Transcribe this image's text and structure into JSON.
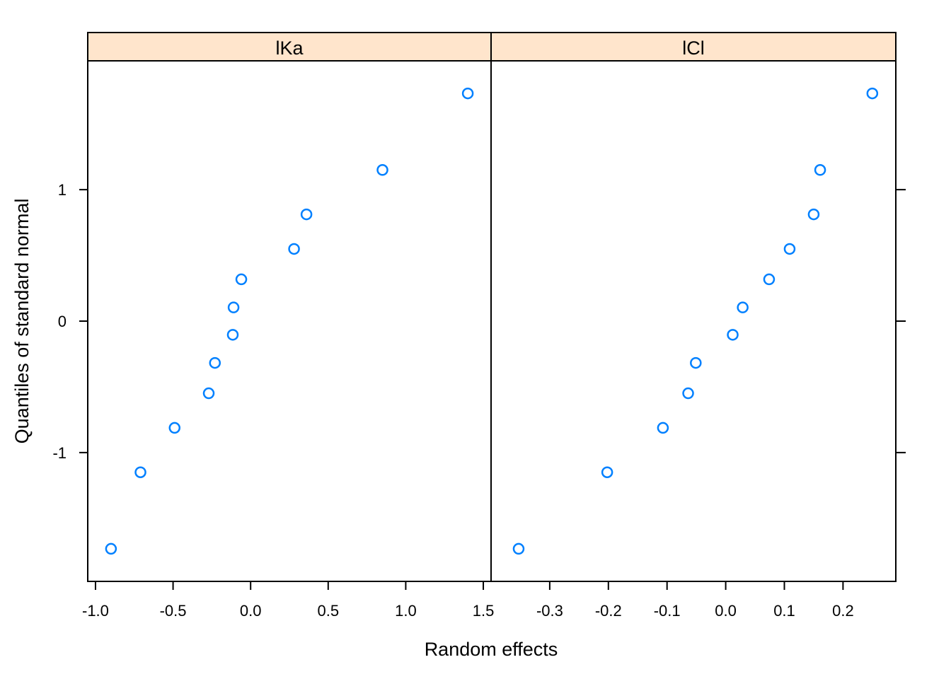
{
  "chart_data": {
    "type": "scatter",
    "subtype": "qq-plot",
    "xlabel": "Random effects",
    "ylabel": "Quantiles of standard normal",
    "ylim": [
      -1.98,
      1.98
    ],
    "yticks": [
      -1,
      0,
      1
    ],
    "ytick_labels": [
      "-1",
      "0",
      "1"
    ],
    "marker_color": "#0080ff",
    "strip_color": "#ffe5cc",
    "panels": [
      {
        "name": "lKa",
        "strip_label": "lKa",
        "xlim": [
          -1.05,
          1.55
        ],
        "xticks": [
          -1.0,
          -0.5,
          0.0,
          0.5,
          1.0,
          1.5
        ],
        "xtick_labels": [
          "-1.0",
          "-0.5",
          "0.0",
          "0.5",
          "1.0",
          "1.5"
        ],
        "points": [
          {
            "x": -0.9,
            "y": -1.732
          },
          {
            "x": -0.71,
            "y": -1.15
          },
          {
            "x": -0.49,
            "y": -0.812
          },
          {
            "x": -0.27,
            "y": -0.549
          },
          {
            "x": -0.23,
            "y": -0.318
          },
          {
            "x": -0.115,
            "y": -0.104
          },
          {
            "x": -0.11,
            "y": 0.104
          },
          {
            "x": -0.06,
            "y": 0.318
          },
          {
            "x": 0.28,
            "y": 0.549
          },
          {
            "x": 0.36,
            "y": 0.812
          },
          {
            "x": 0.85,
            "y": 1.15
          },
          {
            "x": 1.4,
            "y": 1.732
          }
        ]
      },
      {
        "name": "lCl",
        "strip_label": "lCl",
        "xlim": [
          -0.4,
          0.29
        ],
        "xticks": [
          -0.3,
          -0.2,
          -0.1,
          0.0,
          0.1,
          0.2
        ],
        "xtick_labels": [
          "-0.3",
          "-0.2",
          "-0.1",
          "0.0",
          "0.1",
          "0.2"
        ],
        "points": [
          {
            "x": -0.353,
            "y": -1.732
          },
          {
            "x": -0.202,
            "y": -1.15
          },
          {
            "x": -0.107,
            "y": -0.812
          },
          {
            "x": -0.064,
            "y": -0.549
          },
          {
            "x": -0.051,
            "y": -0.318
          },
          {
            "x": 0.012,
            "y": -0.104
          },
          {
            "x": 0.029,
            "y": 0.104
          },
          {
            "x": 0.074,
            "y": 0.318
          },
          {
            "x": 0.109,
            "y": 0.549
          },
          {
            "x": 0.15,
            "y": 0.812
          },
          {
            "x": 0.161,
            "y": 1.15
          },
          {
            "x": 0.25,
            "y": 1.732
          }
        ]
      }
    ]
  }
}
